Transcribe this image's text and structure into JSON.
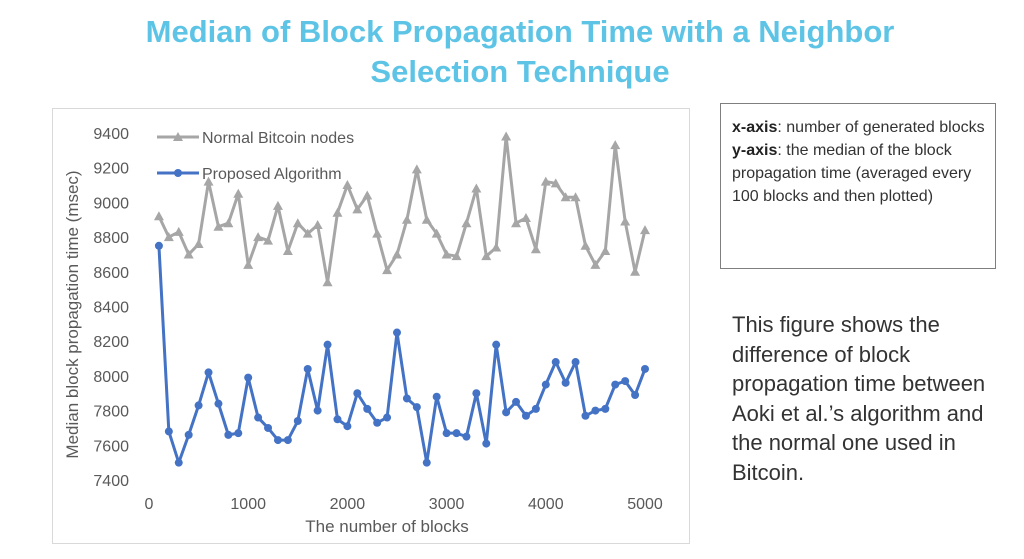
{
  "slide": {
    "title_line1": "Median of Block Propagation Time with a Neighbor",
    "title_line2": "Selection Technique"
  },
  "axis_box": {
    "x_label": "x-axis",
    "x_desc": ": number of generated blocks",
    "y_label": "y-axis",
    "y_desc": ": the median of the block propagation time (averaged every 100 blocks and then plotted)"
  },
  "description": "This figure shows the difference of block propagation time between Aoki et al.’s algorithm and the normal one used in Bitcoin.",
  "colors": {
    "title": "#5ec4e6",
    "normal_series": "#a6a6a6",
    "proposed_series": "#4472c4"
  },
  "chart_data": {
    "type": "line",
    "title": "",
    "xlabel": "The number of blocks",
    "ylabel": "Median block propagation time (msec)",
    "xlim": [
      0,
      5000
    ],
    "ylim": [
      7400,
      9400
    ],
    "xticks": [
      0,
      1000,
      2000,
      3000,
      4000,
      5000
    ],
    "yticks": [
      7400,
      7600,
      7800,
      8000,
      8200,
      8400,
      8600,
      8800,
      9000,
      9200,
      9400
    ],
    "x": [
      100,
      200,
      300,
      400,
      500,
      600,
      700,
      800,
      900,
      1000,
      1100,
      1200,
      1300,
      1400,
      1500,
      1600,
      1700,
      1800,
      1900,
      2000,
      2100,
      2200,
      2300,
      2400,
      2500,
      2600,
      2700,
      2800,
      2900,
      3000,
      3100,
      3200,
      3300,
      3400,
      3500,
      3600,
      3700,
      3800,
      3900,
      4000,
      4100,
      4200,
      4300,
      4400,
      4500,
      4600,
      4700,
      4800,
      4900,
      5000
    ],
    "series": [
      {
        "name": "Normal Bitcoin nodes",
        "marker": "triangle",
        "values": [
          8920,
          8800,
          8830,
          8700,
          8760,
          9120,
          8860,
          8880,
          9050,
          8640,
          8800,
          8780,
          8980,
          8720,
          8880,
          8820,
          8870,
          8540,
          8940,
          9100,
          8960,
          9040,
          8820,
          8610,
          8700,
          8900,
          9190,
          8900,
          8820,
          8700,
          8690,
          8880,
          9080,
          8690,
          8740,
          9380,
          8880,
          8910,
          8730,
          9120,
          9110,
          9030,
          9030,
          8750,
          8640,
          8720,
          9330,
          8890,
          8600,
          8840
        ]
      },
      {
        "name": "Proposed Algorithm",
        "marker": "circle",
        "values": [
          8750,
          7680,
          7500,
          7660,
          7830,
          8020,
          7840,
          7660,
          7670,
          7990,
          7760,
          7700,
          7630,
          7630,
          7740,
          8040,
          7800,
          8180,
          7750,
          7710,
          7900,
          7810,
          7730,
          7760,
          8250,
          7870,
          7820,
          7500,
          7880,
          7670,
          7670,
          7650,
          7900,
          7610,
          8180,
          7790,
          7850,
          7770,
          7810,
          7950,
          8080,
          7960,
          8080,
          7770,
          7800,
          7810,
          7950,
          7970,
          7890,
          8040
        ]
      }
    ],
    "legend": "top-left",
    "grid": false
  }
}
